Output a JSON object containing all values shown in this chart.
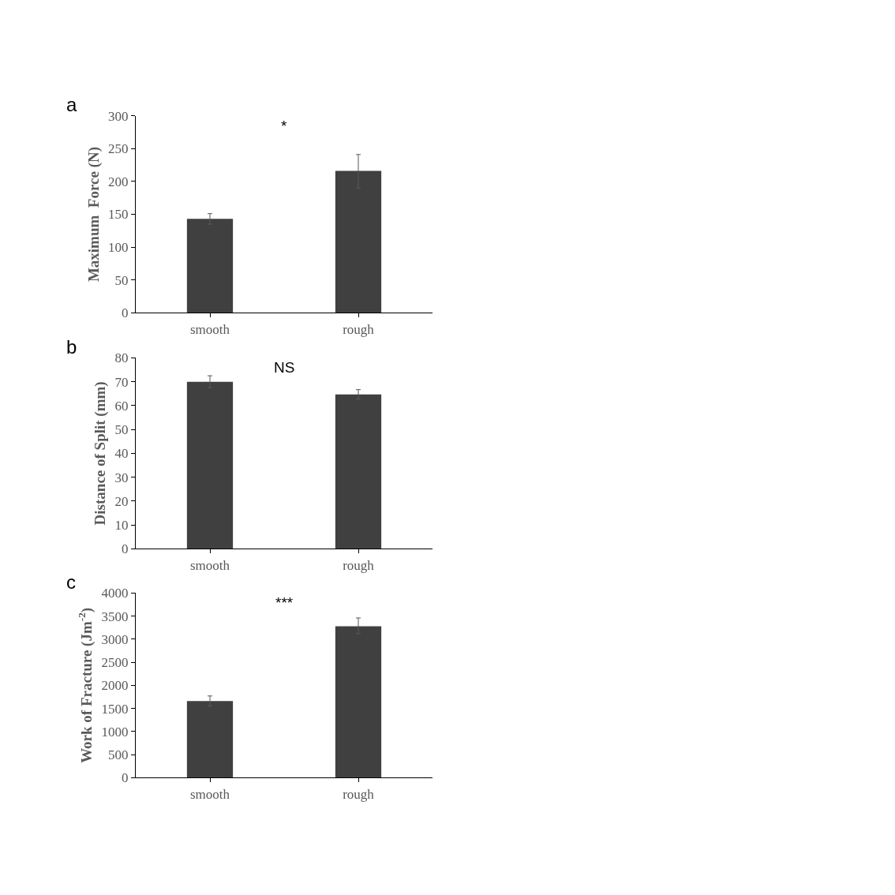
{
  "chart_data": [
    {
      "type": "bar",
      "title": "a",
      "categories": [
        "smooth",
        "rough"
      ],
      "values": [
        143,
        216
      ],
      "errors": [
        8,
        [
          190,
          241
        ]
      ],
      "color": "#404040",
      "ylabel": "Maximum  Force (N)",
      "ylim": [
        0,
        300
      ],
      "yticks": [
        0,
        50,
        100,
        150,
        200,
        250,
        300
      ],
      "annotations": [
        "*"
      ]
    },
    {
      "type": "bar",
      "title": "b",
      "categories": [
        "smooth",
        "rough"
      ],
      "values": [
        70,
        64.7
      ],
      "errors": [
        2.5,
        2
      ],
      "color": "#404040",
      "ylabel": "Distance of Split (mm)",
      "ylim": [
        0,
        80
      ],
      "yticks": [
        0,
        10,
        20,
        30,
        40,
        50,
        60,
        70,
        80
      ],
      "annotations": [
        "NS"
      ]
    },
    {
      "type": "bar",
      "title": "c",
      "categories": [
        "smooth",
        "rough"
      ],
      "values": [
        1660,
        3280
      ],
      "errors": [
        110,
        [
          3120,
          3460
        ]
      ],
      "color": "#404040",
      "ylabel": "Work of Fracture (Jm$^{-2}$)",
      "ylim": [
        0,
        4000
      ],
      "yticks": [
        0,
        500,
        1000,
        1500,
        2000,
        2500,
        3000,
        3500,
        4000
      ],
      "annotations": [
        "***"
      ]
    }
  ]
}
